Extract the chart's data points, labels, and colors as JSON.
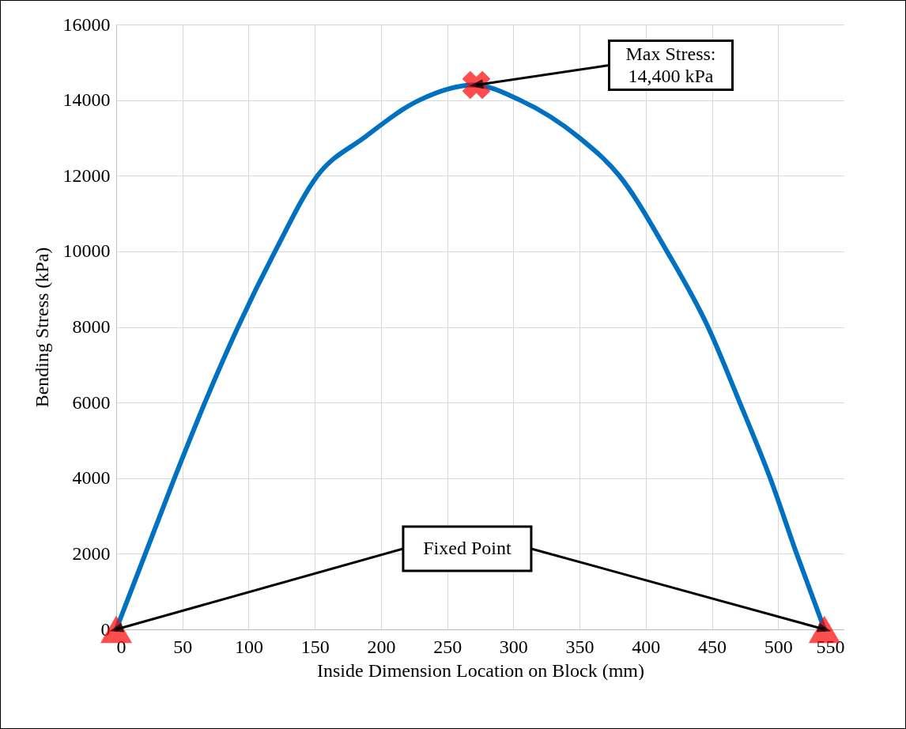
{
  "chart_data": {
    "type": "line",
    "xlabel": "Inside Dimension Location on Block (mm)",
    "ylabel": "Bending Stress (kPa)",
    "xlim": [
      0,
      550
    ],
    "xticks": [
      0,
      50,
      100,
      150,
      200,
      250,
      300,
      350,
      400,
      450,
      500,
      550
    ],
    "ylim": [
      0,
      16000
    ],
    "yticks": [
      0,
      2000,
      4000,
      6000,
      8000,
      10000,
      12000,
      14000,
      16000
    ],
    "grid": true,
    "line_style": "solid",
    "series": [
      {
        "color": "#0070c0",
        "marker": "none",
        "x": [
          0,
          22,
          44,
          67,
          92,
          120,
          152,
          187,
          229,
          270,
          305,
          350,
          380,
          416,
          447,
          471,
          494,
          514,
          535
        ],
        "values": [
          0,
          2000,
          4000,
          6000,
          8000,
          10000,
          12000,
          13000,
          14000,
          14400,
          14000,
          13000,
          12000,
          10000,
          8000,
          6000,
          4000,
          2000,
          0
        ]
      },
      {
        "type": "scatter",
        "color": "#ff0000",
        "marker": "triangle",
        "x": [
          0,
          535
        ],
        "values": [
          0,
          0
        ]
      },
      {
        "type": "scatter",
        "color": "#ff0000",
        "marker": "cross",
        "x": [
          272
        ],
        "values": [
          14400
        ]
      }
    ],
    "annotations": [
      {
        "text": "Max Stress:\n14,400 kPa",
        "x": 272,
        "y": 14400
      },
      "Fixed Point"
    ]
  }
}
